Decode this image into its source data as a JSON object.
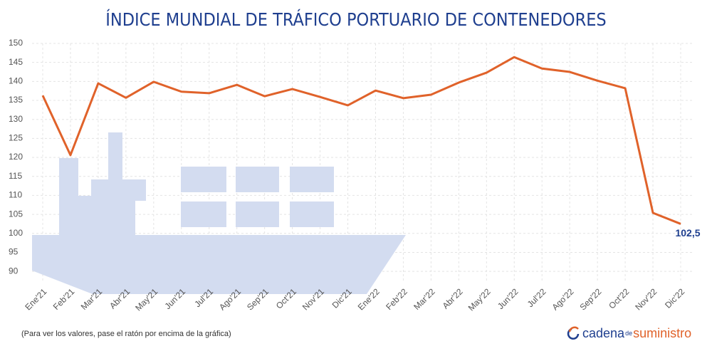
{
  "chart_data": {
    "type": "line",
    "title": "ÍNDICE MUNDIAL DE TRÁFICO PORTUARIO DE CONTENEDORES",
    "categories": [
      "Ene'21",
      "Feb'21",
      "Mar'21",
      "Abr'21",
      "May'21",
      "Jun'21",
      "Jul'21",
      "Ago'21",
      "Sep'21",
      "Oct'21",
      "Nov'21",
      "Dic'21",
      "Ene'22",
      "Feb'22",
      "Mar'22",
      "Abr'22",
      "May'22",
      "Jun'22",
      "Jul'22",
      "Ago'22",
      "Sep'22",
      "Oct'22",
      "Nov'22",
      "Dic'22"
    ],
    "values": [
      136.3,
      120.6,
      139.5,
      135.7,
      139.9,
      137.3,
      136.9,
      139.1,
      136.1,
      138.0,
      135.9,
      133.7,
      137.6,
      135.6,
      136.5,
      139.7,
      142.3,
      146.4,
      143.4,
      142.5,
      140.2,
      138.2,
      105.4,
      102.5
    ],
    "value_labels": [
      null,
      null,
      null,
      null,
      null,
      null,
      null,
      null,
      null,
      null,
      null,
      null,
      null,
      null,
      null,
      null,
      null,
      null,
      null,
      null,
      null,
      null,
      null,
      "102,5"
    ],
    "color": "#e0622a",
    "ylim": [
      87.4,
      150
    ],
    "yticks": [
      90,
      95,
      100,
      105,
      110,
      115,
      120,
      125,
      130,
      135,
      140,
      145,
      150
    ],
    "grid": true,
    "note": "(Para ver los valores, pase el ratón por encima de la gráfica)",
    "logo": {
      "part1": "cadena",
      "part2": "de",
      "part3": "suministro"
    }
  }
}
